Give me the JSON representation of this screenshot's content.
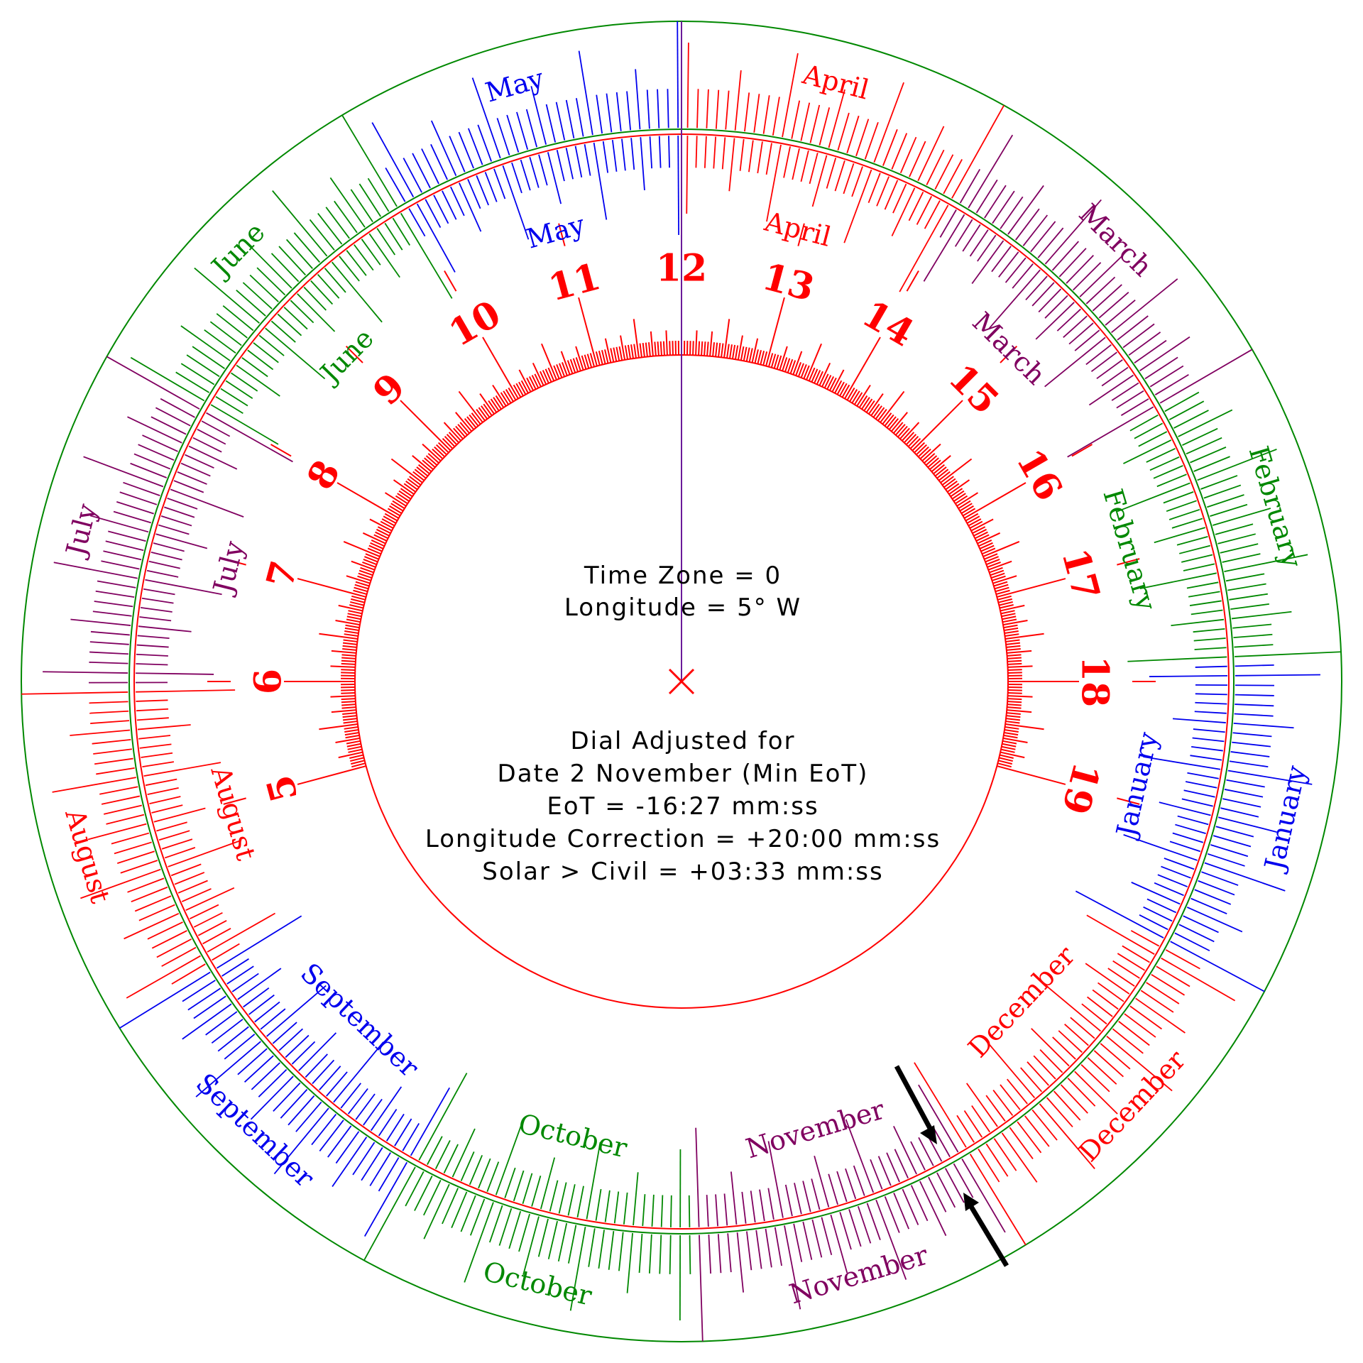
{
  "colors": {
    "red": "#ff0000",
    "green": "#008800",
    "blue": "#0000ee",
    "purple": "#800060",
    "pointer": "#6a1b9a",
    "arrow": "#000000"
  },
  "hours": [
    "5",
    "6",
    "7",
    "8",
    "9",
    "10",
    "11",
    "12",
    "13",
    "14",
    "15",
    "16",
    "17",
    "18",
    "19"
  ],
  "months": [
    {
      "name": "January",
      "color": "blue"
    },
    {
      "name": "February",
      "color": "green"
    },
    {
      "name": "March",
      "color": "purple"
    },
    {
      "name": "April",
      "color": "red"
    },
    {
      "name": "May",
      "color": "blue"
    },
    {
      "name": "June",
      "color": "green"
    },
    {
      "name": "July",
      "color": "purple"
    },
    {
      "name": "August",
      "color": "red"
    },
    {
      "name": "September",
      "color": "blue"
    },
    {
      "name": "October",
      "color": "green"
    },
    {
      "name": "November",
      "color": "purple"
    },
    {
      "name": "December",
      "color": "red"
    }
  ],
  "settings": {
    "time_zone": "Time Zone = 0",
    "longitude": "Longitude = 5° W"
  },
  "adjustment": {
    "heading": "Dial Adjusted for",
    "date": "Date 2 November (Min EoT)",
    "eot": "EoT = -16:27 mm:ss",
    "longitude_correction": "Longitude Correction = +20:00 mm:ss",
    "solar_civil": "Solar > Civil = +03:33 mm:ss"
  }
}
